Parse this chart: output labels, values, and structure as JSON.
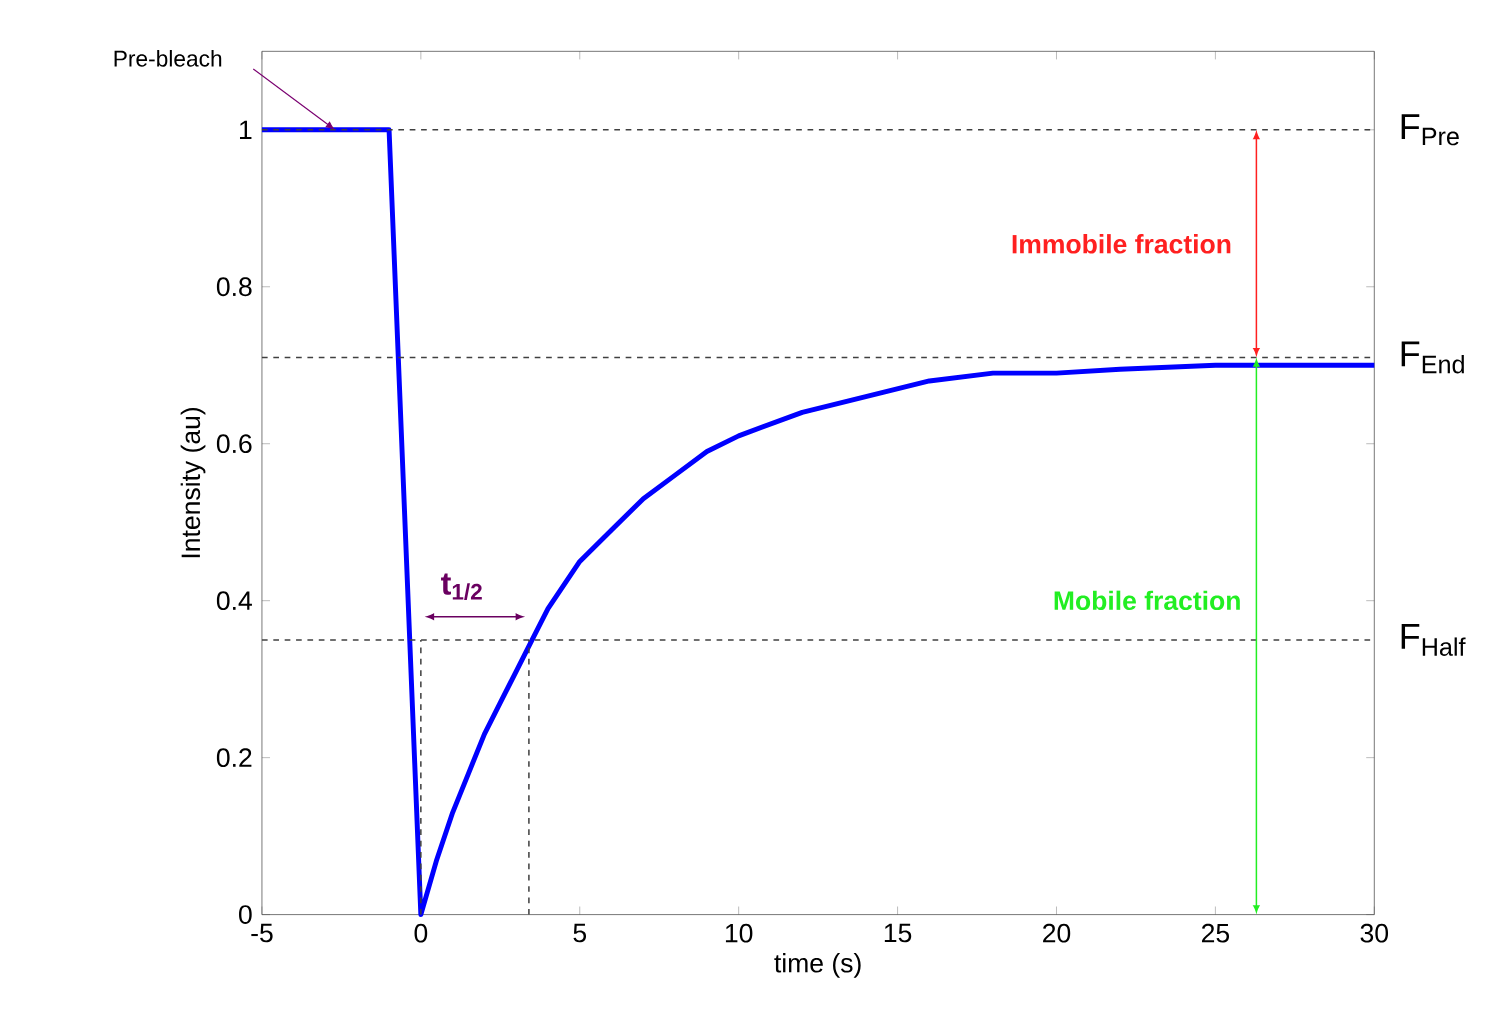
{
  "chart_data": {
    "type": "line",
    "xlabel": "time (s)",
    "ylabel": "Intensity (au)",
    "xlim": [
      -5,
      30
    ],
    "ylim": [
      0,
      1.1
    ],
    "xticks": [
      -5,
      0,
      5,
      10,
      15,
      20,
      25,
      30
    ],
    "yticks": [
      0,
      0.2,
      0.4,
      0.6,
      0.8,
      1
    ],
    "series": [
      {
        "color": "#0000ff",
        "line_style": "solid",
        "x": [
          -5,
          -1,
          0,
          0.5,
          1,
          1.5,
          2,
          2.5,
          3,
          3.5,
          4,
          5,
          6,
          7,
          8,
          9,
          10,
          11,
          12,
          14,
          16,
          18,
          20,
          22,
          25,
          30
        ],
        "values": [
          1,
          1,
          0,
          0.07,
          0.13,
          0.18,
          0.23,
          0.27,
          0.31,
          0.35,
          0.39,
          0.45,
          0.49,
          0.53,
          0.56,
          0.59,
          0.61,
          0.625,
          0.64,
          0.66,
          0.68,
          0.69,
          0.69,
          0.695,
          0.7,
          0.7
        ]
      },
      {
        "color": "#404040",
        "line_style": "dashed",
        "x": [
          0,
          0
        ],
        "values": [
          0,
          0.35
        ]
      },
      {
        "color": "#404040",
        "line_style": "dashed",
        "x": [
          3.4,
          3.4
        ],
        "values": [
          0,
          0.35
        ]
      }
    ],
    "ref_lines": [
      {
        "axis": "y",
        "value": 1,
        "label": "F$_{Pre}$",
        "color": "#404040",
        "line_style": "dashed"
      },
      {
        "axis": "y",
        "value": 0.71,
        "label": "F$_{End}$",
        "color": "#404040",
        "line_style": "dashed"
      },
      {
        "axis": "y",
        "value": 0.35,
        "label": "F$_{Half}$",
        "color": "#404040",
        "line_style": "dashed"
      }
    ],
    "annotations": [
      "Pre-bleach",
      "t$_{1/2}$",
      "Immobile fraction",
      "Mobile fraction"
    ]
  }
}
